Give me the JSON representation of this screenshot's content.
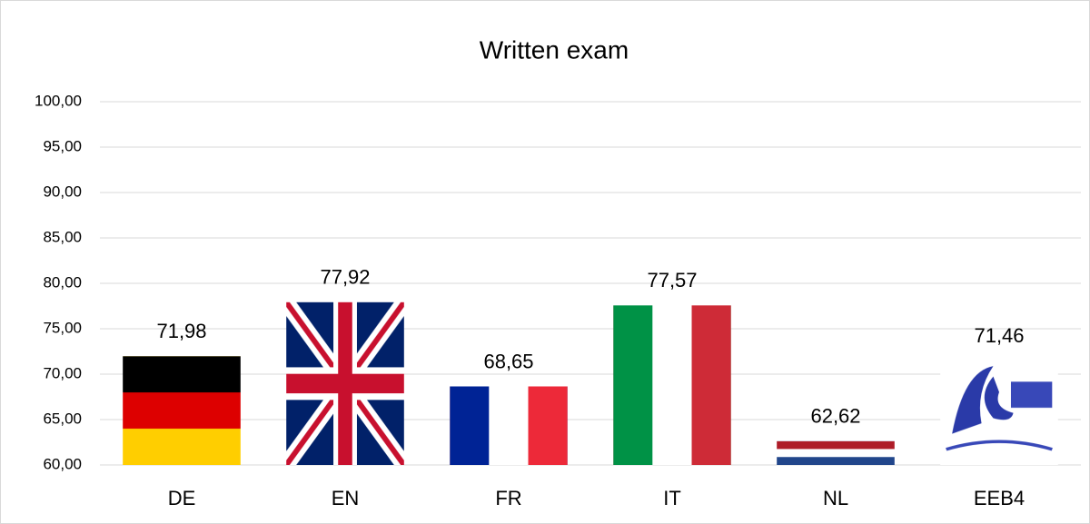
{
  "chart_data": {
    "type": "bar",
    "title": "Written exam",
    "categories": [
      "DE",
      "EN",
      "FR",
      "IT",
      "NL",
      "EEB4"
    ],
    "values": [
      71.98,
      77.92,
      68.65,
      77.57,
      62.62,
      71.46
    ],
    "value_labels": [
      "71,98",
      "77,92",
      "68,65",
      "77,57",
      "62,62",
      "71,46"
    ],
    "ylim": [
      60,
      100
    ],
    "yticks": [
      {
        "value": 60,
        "label": "60,00"
      },
      {
        "value": 65,
        "label": "65,00"
      },
      {
        "value": 70,
        "label": "70,00"
      },
      {
        "value": 75,
        "label": "75,00"
      },
      {
        "value": 80,
        "label": "80,00"
      },
      {
        "value": 85,
        "label": "85,00"
      },
      {
        "value": 90,
        "label": "90,00"
      },
      {
        "value": 95,
        "label": "95,00"
      },
      {
        "value": 100,
        "label": "100,00"
      }
    ],
    "grid": true
  }
}
